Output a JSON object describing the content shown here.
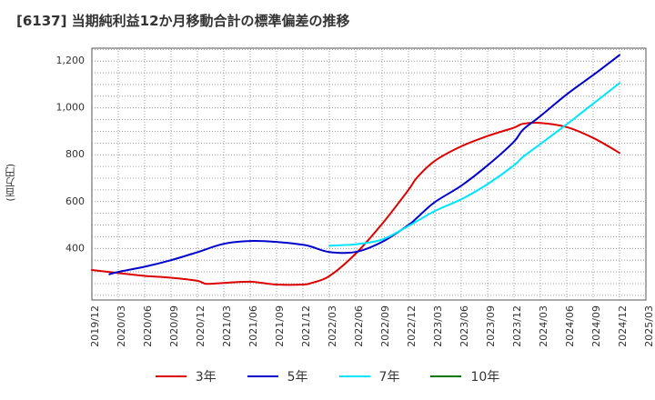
{
  "chart_data": {
    "type": "line",
    "title": "[6137]  当期純利益12か月移動合計の標準偏差の推移",
    "ylabel": "(百万円)",
    "xlabel": "",
    "x_ticks": [
      "2019/12",
      "2020/03",
      "2020/06",
      "2020/09",
      "2020/12",
      "2021/03",
      "2021/06",
      "2021/09",
      "2021/12",
      "2022/03",
      "2022/06",
      "2022/09",
      "2022/12",
      "2023/03",
      "2023/06",
      "2023/09",
      "2023/12",
      "2024/03",
      "2024/06",
      "2024/09",
      "2024/12",
      "2025/03"
    ],
    "y_ticks": [
      400,
      600,
      800,
      1000,
      1200
    ],
    "ylim": [
      180,
      1255
    ],
    "grid": true,
    "legend_position": "bottom",
    "series": [
      {
        "name": "3年",
        "color": "#dd0000",
        "x": [
          "2019/12",
          "2020/03",
          "2020/06",
          "2020/09",
          "2020/12",
          "2021/01",
          "2021/03",
          "2021/06",
          "2021/09",
          "2021/12",
          "2022/01",
          "2022/03",
          "2022/06",
          "2022/09",
          "2022/12",
          "2023/01",
          "2023/03",
          "2023/06",
          "2023/09",
          "2023/12",
          "2024/01",
          "2024/03",
          "2024/06",
          "2024/09",
          "2024/12"
        ],
        "values": [
          308,
          295,
          283,
          275,
          262,
          249,
          253,
          258,
          246,
          246,
          253,
          282,
          378,
          505,
          650,
          704,
          774,
          836,
          880,
          916,
          932,
          936,
          918,
          872,
          808
        ]
      },
      {
        "name": "5年",
        "color": "#0000cc",
        "x": [
          "2020/02",
          "2020/03",
          "2020/06",
          "2020/09",
          "2020/12",
          "2021/03",
          "2021/06",
          "2021/09",
          "2021/12",
          "2022/01",
          "2022/03",
          "2022/06",
          "2022/09",
          "2022/12",
          "2023/01",
          "2023/03",
          "2023/06",
          "2023/09",
          "2023/12",
          "2024/01",
          "2024/03",
          "2024/06",
          "2024/09",
          "2024/12"
        ],
        "values": [
          290,
          300,
          322,
          350,
          384,
          420,
          432,
          428,
          416,
          407,
          385,
          385,
          428,
          500,
          532,
          598,
          668,
          755,
          856,
          906,
          965,
          1058,
          1140,
          1226
        ]
      },
      {
        "name": "7年",
        "color": "#00e5ff",
        "x": [
          "2022/03",
          "2022/06",
          "2022/09",
          "2022/12",
          "2023/03",
          "2023/06",
          "2023/09",
          "2023/12",
          "2024/01",
          "2024/03",
          "2024/06",
          "2024/09",
          "2024/12"
        ],
        "values": [
          412,
          418,
          438,
          496,
          560,
          610,
          675,
          755,
          790,
          846,
          930,
          1018,
          1106
        ]
      },
      {
        "name": "10年",
        "color": "#007700",
        "x": [],
        "values": []
      }
    ]
  }
}
